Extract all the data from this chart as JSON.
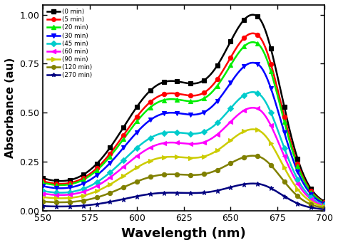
{
  "xlabel": "Wavelength (nm)",
  "ylabel": "Absorbance (au)",
  "xlim": [
    550,
    700
  ],
  "ylim": [
    0.0,
    1.05
  ],
  "yticks": [
    0.0,
    0.25,
    0.5,
    0.75,
    1.0
  ],
  "xticks": [
    550,
    575,
    600,
    625,
    650,
    675,
    700
  ],
  "series": [
    {
      "label": "(0 min)",
      "color": "#000000",
      "marker": "s",
      "linestyle": "-",
      "scale": 1.0
    },
    {
      "label": "(5 min)",
      "color": "#ff0000",
      "marker": "o",
      "linestyle": "-",
      "scale": 0.905
    },
    {
      "label": "(20 min)",
      "color": "#00ee00",
      "marker": "^",
      "linestyle": "-",
      "scale": 0.86
    },
    {
      "label": "(30 min)",
      "color": "#0000ff",
      "marker": "v",
      "linestyle": "-",
      "scale": 0.755
    },
    {
      "label": "(45 min)",
      "color": "#00cccc",
      "marker": "D",
      "linestyle": "-",
      "scale": 0.605
    },
    {
      "label": "(60 min)",
      "color": "#ff00ff",
      "marker": "<",
      "linestyle": "-",
      "scale": 0.525
    },
    {
      "label": "(90 min)",
      "color": "#cccc00",
      "marker": ">",
      "linestyle": "-",
      "scale": 0.415
    },
    {
      "label": "(120 min)",
      "color": "#808000",
      "marker": "o",
      "linestyle": "-",
      "scale": 0.28
    },
    {
      "label": "(270 min)",
      "color": "#000080",
      "marker": "*",
      "linestyle": "-",
      "scale": 0.138
    }
  ]
}
